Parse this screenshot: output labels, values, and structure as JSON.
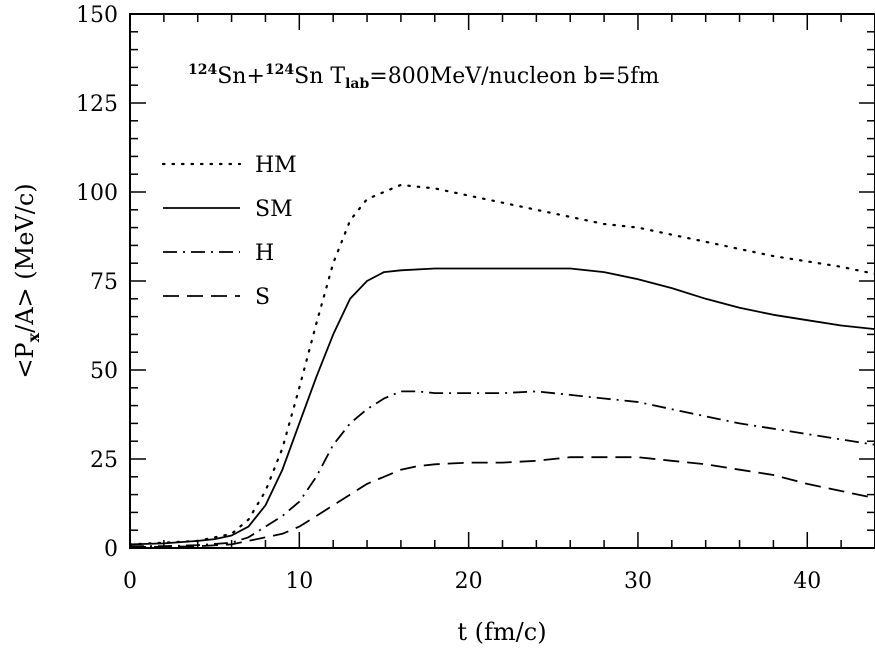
{
  "chart_data": {
    "type": "line",
    "xlabel": "t (fm/c)",
    "ylabel_parts": {
      "open": "<P",
      "sub": "x",
      "close": "/A> (MeV/c)"
    },
    "xlim": [
      0,
      44
    ],
    "ylim": [
      0,
      150
    ],
    "x_ticks": [
      0,
      10,
      20,
      30,
      40
    ],
    "y_ticks": [
      0,
      25,
      50,
      75,
      100,
      125,
      150
    ],
    "grid": false,
    "legend_placement": "upper-left",
    "annotation": {
      "sup1": "124",
      "elem1": "Sn+",
      "sup2": "124",
      "elem2": "Sn T",
      "sub": "lab",
      "rest": "=800MeV/nucleon b=5fm"
    },
    "series": [
      {
        "name": "HM",
        "style": "dotted",
        "x": [
          0,
          2,
          4,
          6,
          7,
          8,
          9,
          10,
          11,
          12,
          13,
          14,
          15,
          16,
          17,
          18,
          20,
          22,
          24,
          26,
          28,
          30,
          32,
          34,
          36,
          38,
          40,
          42,
          44
        ],
        "y": [
          1,
          1.5,
          2,
          4,
          8,
          16,
          28,
          45,
          63,
          80,
          92,
          98,
          100,
          102,
          101.5,
          101,
          99,
          97,
          95,
          93,
          91,
          90,
          88,
          86,
          84,
          82,
          80.5,
          79,
          77
        ]
      },
      {
        "name": "SM",
        "style": "solid",
        "x": [
          0,
          2,
          4,
          5,
          6,
          7,
          8,
          9,
          10,
          11,
          12,
          13,
          14,
          15,
          16,
          18,
          20,
          22,
          24,
          26,
          28,
          30,
          32,
          34,
          36,
          38,
          40,
          42,
          44
        ],
        "y": [
          1,
          1.3,
          2,
          2.5,
          3.5,
          6,
          12,
          22,
          35,
          48,
          60,
          70,
          75,
          77.5,
          78,
          78.5,
          78.5,
          78.5,
          78.5,
          78.5,
          77.5,
          75.5,
          73,
          70,
          67.5,
          65.5,
          64,
          62.5,
          61.5
        ]
      },
      {
        "name": "H",
        "style": "dashdot",
        "x": [
          0,
          2,
          4,
          6,
          7,
          8,
          9,
          10,
          11,
          12,
          13,
          14,
          15,
          16,
          17,
          18,
          20,
          22,
          24,
          26,
          28,
          30,
          32,
          34,
          36,
          38,
          40,
          42,
          44
        ],
        "y": [
          0.5,
          0.5,
          0.8,
          1.5,
          3,
          6,
          9,
          13,
          20,
          29,
          35,
          39,
          42,
          44,
          44,
          43.5,
          43.5,
          43.5,
          44,
          43,
          42,
          41,
          39,
          37,
          35,
          33.5,
          32,
          30.5,
          29
        ]
      },
      {
        "name": "S",
        "style": "dashed",
        "x": [
          0,
          2,
          4,
          6,
          7,
          8,
          9,
          10,
          11,
          12,
          13,
          14,
          15,
          16,
          17,
          18,
          20,
          22,
          24,
          26,
          28,
          30,
          32,
          34,
          36,
          38,
          40,
          42,
          44
        ],
        "y": [
          0.3,
          0.3,
          0.5,
          1,
          2,
          3,
          4,
          6,
          9,
          12,
          15,
          18,
          20,
          22,
          23,
          23.5,
          24,
          24,
          24.5,
          25.5,
          25.5,
          25.5,
          24.5,
          23.5,
          22,
          20.5,
          18,
          16,
          14
        ]
      }
    ]
  }
}
